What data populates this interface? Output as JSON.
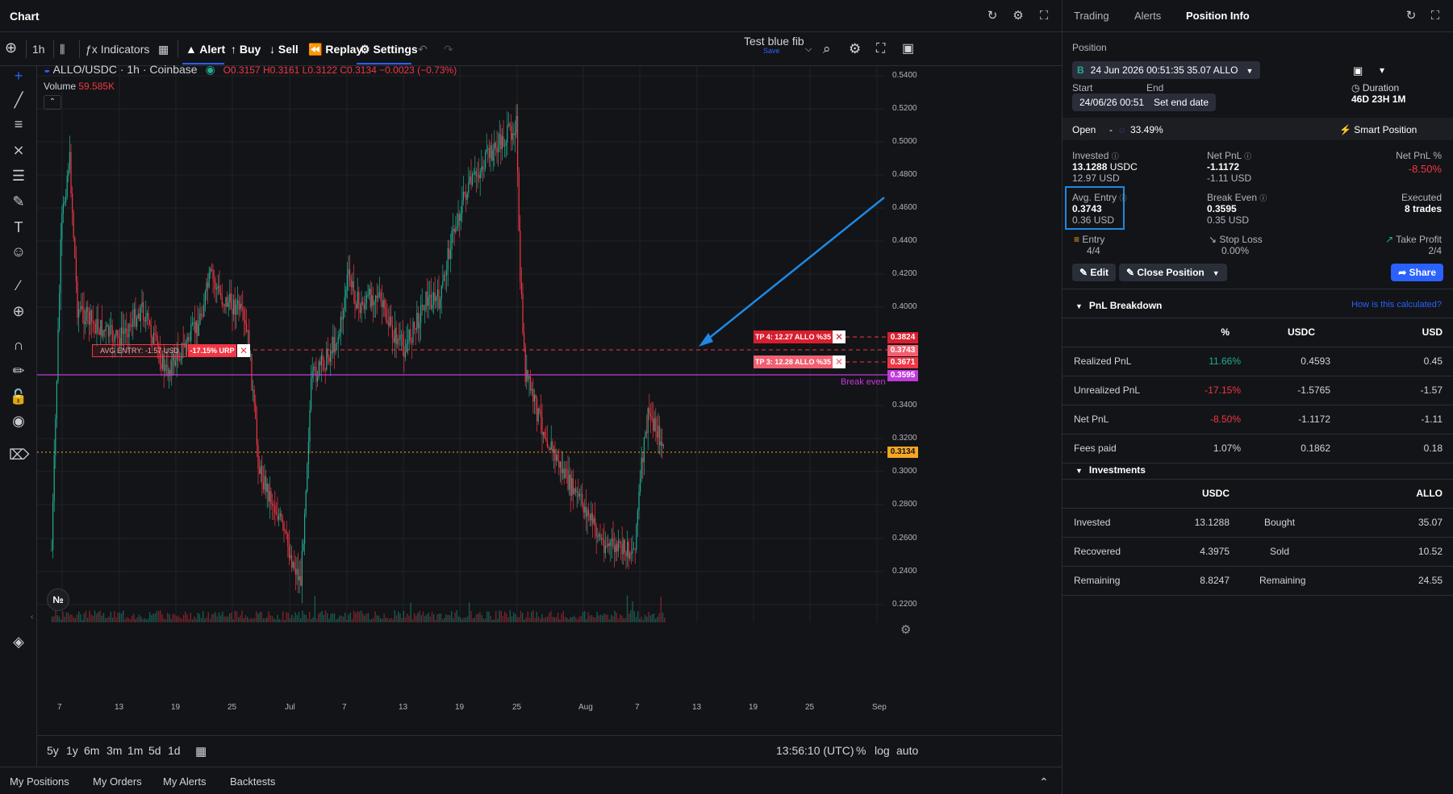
{
  "chart_header": {
    "title": "Chart"
  },
  "toolbar": {
    "interval": "1h",
    "indicators": "Indicators",
    "alert": "Alert",
    "buy": "Buy",
    "sell": "Sell",
    "replay": "Replay",
    "settings": "Settings",
    "layout_name": "Test blue fib",
    "layout_save": "Save"
  },
  "legend": {
    "symbol": "ALLO/USDC · 1h · Coinbase",
    "o": "O0.3157",
    "h": "H0.3161",
    "l": "L0.3122",
    "c": "C0.3134",
    "change": "−0.0023 (−0.73%)",
    "volume_label": "Volume",
    "volume_value": "59.585K"
  },
  "price_axis": [
    "0.5400",
    "0.5200",
    "0.5000",
    "0.4800",
    "0.4600",
    "0.4400",
    "0.4200",
    "0.4000",
    "0.3400",
    "0.3200",
    "0.3000",
    "0.2800",
    "0.2600",
    "0.2400",
    "0.2200"
  ],
  "time_axis": [
    "7",
    "13",
    "19",
    "25",
    "Jul",
    "7",
    "13",
    "19",
    "25",
    "Aug",
    "7",
    "13",
    "19",
    "25",
    "Sep"
  ],
  "price_tags": {
    "tp4": "0.3824",
    "avg": "0.3743",
    "tp3": "0.3671",
    "be": "0.3595",
    "last": "0.3134"
  },
  "chart_labels": {
    "avg_entry": "AVG ENTRY: -1.57 USD",
    "urp": "-17.15% URP",
    "tp4": "TP 4: 12.27 ALLO %35",
    "tp3": "TP 3: 12.28 ALLO %35",
    "break_even": "Break even"
  },
  "colors": {
    "bull": "#22ab94",
    "bear": "#f23645",
    "break_even": "#c13adb",
    "accent": "#2962ff",
    "arrow": "#1e88e5",
    "last_price": "#f5a623"
  },
  "bottom_bar": {
    "ranges": [
      "5y",
      "1y",
      "6m",
      "3m",
      "1m",
      "5d",
      "1d"
    ],
    "time": "13:56:10 (UTC)",
    "percent": "%",
    "log": "log",
    "auto": "auto"
  },
  "bottom_tabs": [
    "My Positions",
    "My Orders",
    "My Alerts",
    "Backtests"
  ],
  "right_panel": {
    "tabs": [
      "Trading",
      "Alerts",
      "Position Info"
    ],
    "position_label": "Position",
    "position_value": "24 Jun 2026 00:51:35 35.07 ALLO",
    "position_badge": "B",
    "start_label": "Start",
    "start_value": "24/06/26 00:51",
    "end_label": "End",
    "end_value": "Set end date",
    "duration_label": "Duration",
    "duration_value": "46D 23H 1M",
    "open_label": "Open",
    "open_dash": "-",
    "open_pct": "33.49%",
    "smart_position": "Smart Position",
    "invested_label": "Invested",
    "invested_value": "13.1288",
    "invested_unit": "USDC",
    "invested_usd": "12.97 USD",
    "netpnl_label": "Net PnL",
    "netpnl_value": "-1.1172",
    "netpnl_usd": "-1.11 USD",
    "netpnl_pct_label": "Net PnL %",
    "netpnl_pct_value": "-8.50%",
    "avg_entry_label": "Avg. Entry",
    "avg_entry_value": "0.3743",
    "avg_entry_usd": "0.36 USD",
    "break_even_label": "Break Even",
    "break_even_value": "0.3595",
    "break_even_usd": "0.35 USD",
    "executed_label": "Executed",
    "executed_value": "8 trades",
    "entry_label": "Entry",
    "entry_value": "4/4",
    "stop_loss_label": "Stop Loss",
    "stop_loss_value": "0.00%",
    "take_profit_label": "Take Profit",
    "take_profit_value": "2/4",
    "edit": "Edit",
    "close_position": "Close Position",
    "share": "Share",
    "pnl_breakdown": "PnL Breakdown",
    "how_calc": "How is this calculated?",
    "pnl_headers": [
      "%",
      "USDC",
      "USD"
    ],
    "pnl_rows": [
      {
        "label": "Realized PnL",
        "pct": "11.66%",
        "usdc": "0.4593",
        "usd": "0.45"
      },
      {
        "label": "Unrealized PnL",
        "pct": "-17.15%",
        "usdc": "-1.5765",
        "usd": "-1.57"
      },
      {
        "label": "Net PnL",
        "pct": "-8.50%",
        "usdc": "-1.1172",
        "usd": "-1.11"
      },
      {
        "label": "Fees paid",
        "pct": "1.07%",
        "usdc": "0.1862",
        "usd": "0.18"
      }
    ],
    "investments": "Investments",
    "inv_headers": [
      "USDC",
      "ALLO"
    ],
    "inv_rows": [
      {
        "label": "Invested",
        "usdc": "13.1288",
        "label2": "Bought",
        "allo": "35.07"
      },
      {
        "label": "Recovered",
        "usdc": "4.3975",
        "label2": "Sold",
        "allo": "10.52"
      },
      {
        "label": "Remaining",
        "usdc": "8.8247",
        "label2": "Remaining",
        "allo": "24.55"
      }
    ]
  }
}
